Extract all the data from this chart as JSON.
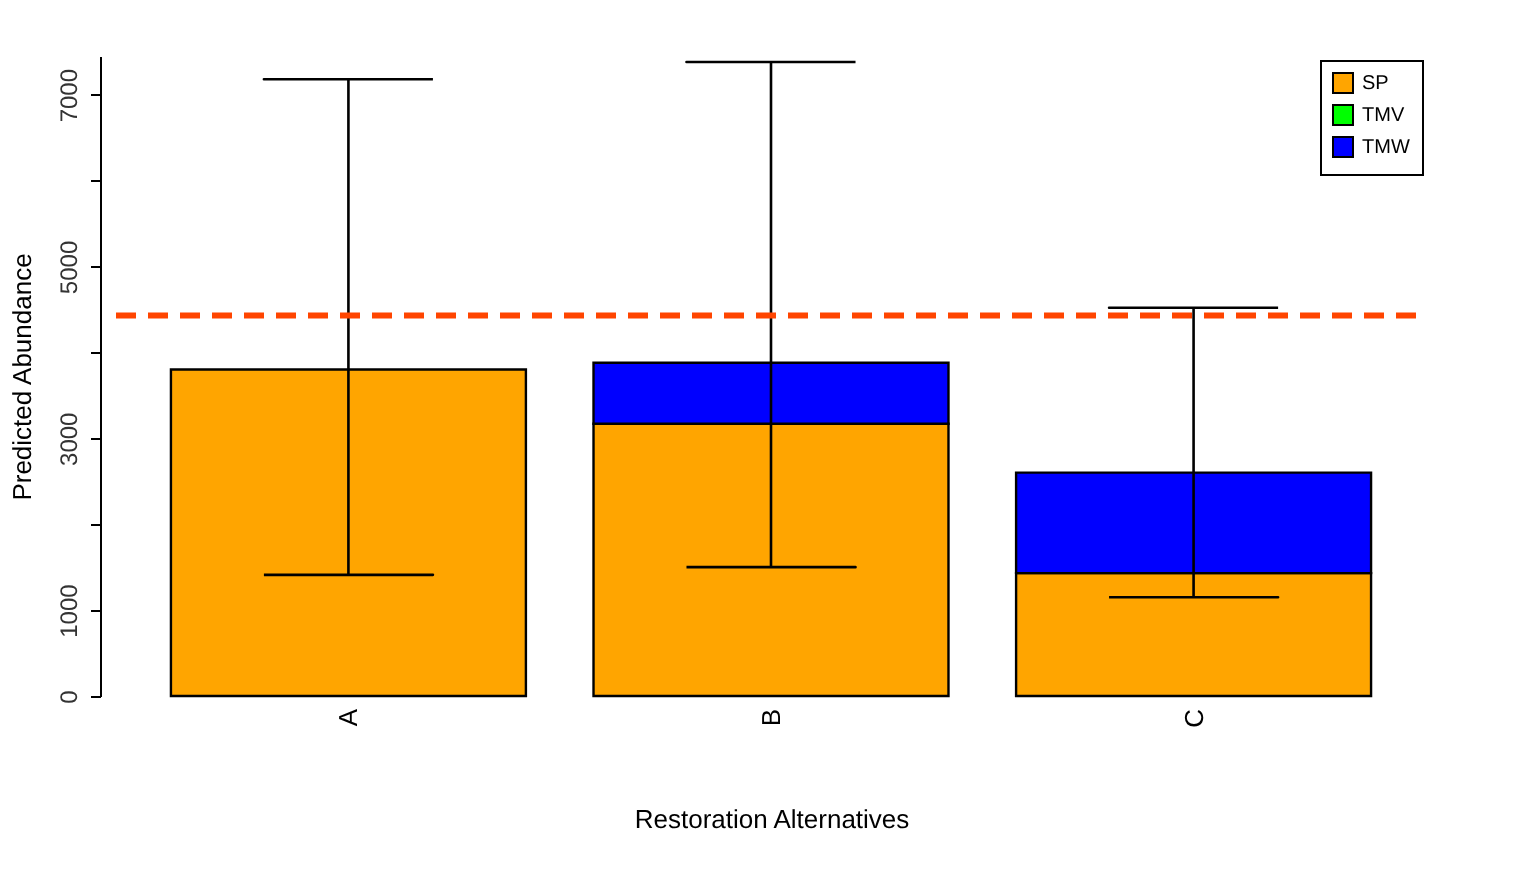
{
  "chart_data": {
    "type": "bar",
    "stacked": true,
    "xlabel": "Restoration Alternatives",
    "ylabel": "Predicted Abundance",
    "categories": [
      "A",
      "B",
      "C"
    ],
    "series": [
      {
        "name": "SP",
        "color": "#ffa500",
        "values": [
          3800,
          3170,
          1430
        ],
        "errors": [
          [
            1410,
            7180
          ],
          [
            1500,
            7380
          ],
          [
            1150,
            4520
          ]
        ]
      },
      {
        "name": "TMV",
        "color": "#00ff00",
        "values": [
          null,
          null,
          null
        ]
      },
      {
        "name": "TMW",
        "color": "#0000ff",
        "values": [
          null,
          710,
          1170
        ]
      }
    ],
    "ylim": [
      0,
      7450
    ],
    "yticks": [
      0,
      1000,
      {
        "value": 2000,
        "label": null
      },
      3000,
      {
        "value": 4000,
        "label": null
      },
      5000,
      {
        "value": 6000,
        "label": null
      },
      7000
    ],
    "ref_lines": [
      {
        "axis": "y",
        "value": 4430,
        "color": "#ff4500",
        "line_style": "dashed"
      }
    ],
    "legend": "top right",
    "grid": false
  }
}
